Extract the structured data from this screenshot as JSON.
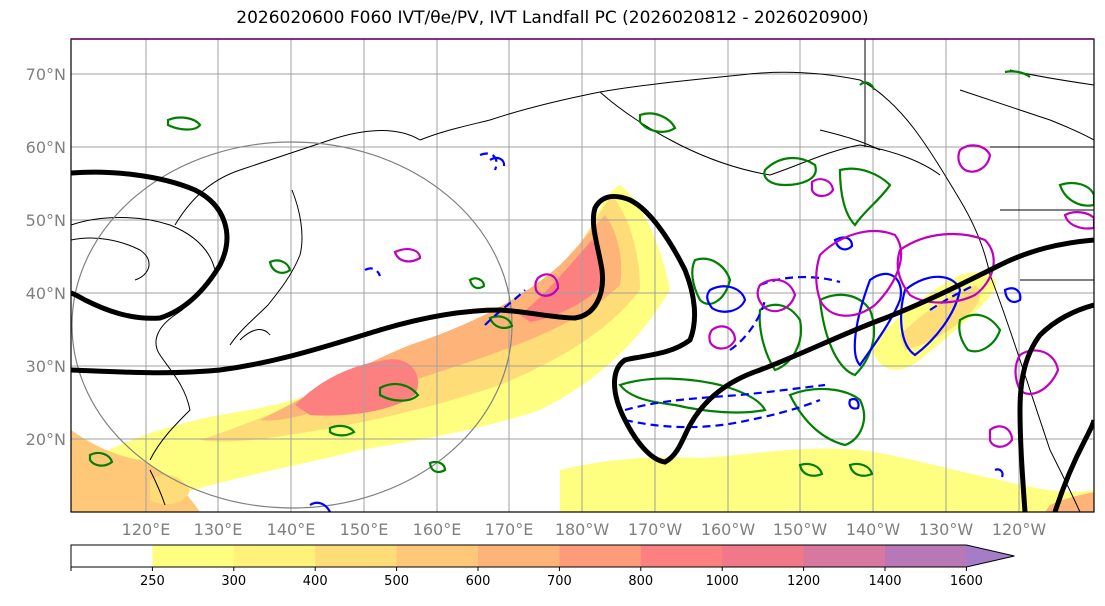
{
  "title": "2026020600 F060 IVT/θe/PV, IVT Landfall PC (2026020812 - 2026020900)",
  "map": {
    "lat_labels": [
      "70°N",
      "60°N",
      "50°N",
      "40°N",
      "30°N",
      "20°N"
    ],
    "lon_labels": [
      "120°E",
      "130°E",
      "140°E",
      "150°E",
      "160°E",
      "170°E",
      "180°W",
      "170°W",
      "160°W",
      "150°W",
      "140°W",
      "130°W",
      "120°W"
    ]
  },
  "colorbar": {
    "levels": [
      "250",
      "300",
      "400",
      "500",
      "600",
      "700",
      "800",
      "1000",
      "1200",
      "1400",
      "1600"
    ],
    "colors": [
      "#ffffff",
      "#fefe80",
      "#fef27a",
      "#fedd78",
      "#fec878",
      "#feb478",
      "#fe9b7a",
      "#fc8080",
      "#f07888",
      "#d878a0",
      "#b878b8",
      "#a57cc8"
    ]
  },
  "colors": {
    "theta_e_contour": "#008000",
    "pv_positive": "#0000ff",
    "pv_other": "#c000c0",
    "ivt_landfall_line": "#000000",
    "coast": "#000000",
    "grid": "#a0a0a0"
  }
}
